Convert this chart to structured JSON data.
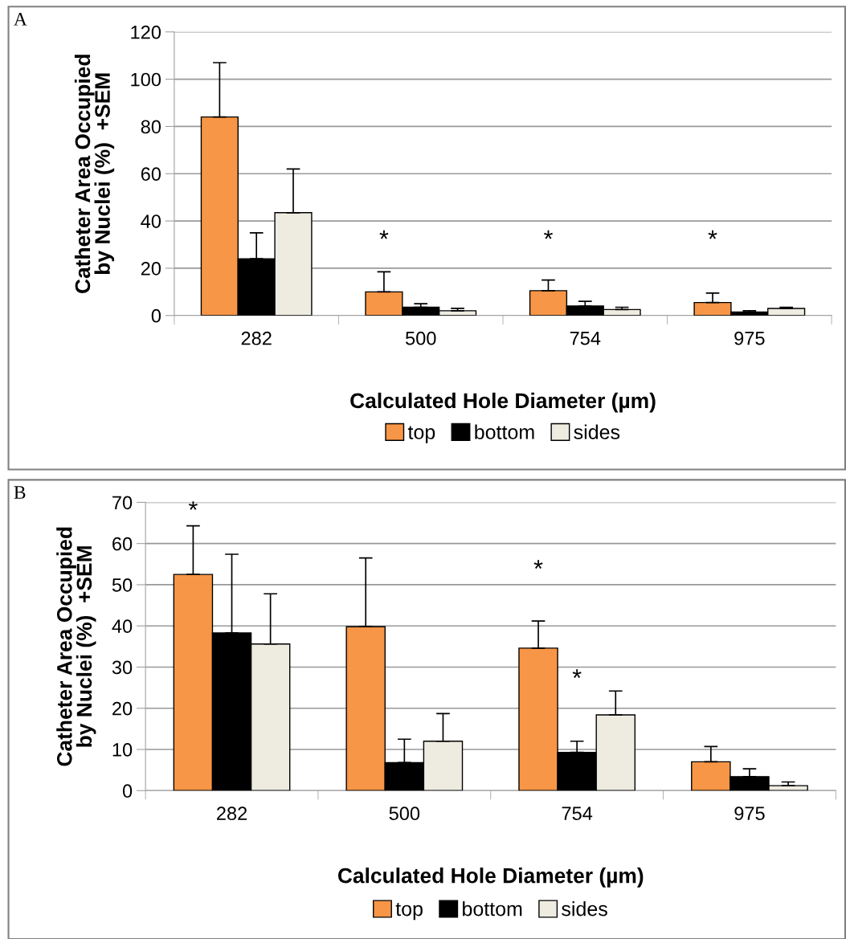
{
  "chart_data": [
    {
      "type": "bar",
      "title": "A",
      "xlabel": "Calculated Hole Diameter (µm)",
      "ylabel": "Catheter Area Occupied\nby Nuclei (%)  +SEM",
      "categories": [
        "282",
        "500",
        "754",
        "975"
      ],
      "ylim": [
        0,
        120
      ],
      "yticks": [
        0,
        20,
        40,
        60,
        80,
        100,
        120
      ],
      "grid": "y",
      "legend": "bottom",
      "series": [
        {
          "name": "top",
          "color": "#f79646",
          "values": [
            84,
            10,
            10.5,
            5.5
          ],
          "errors": [
            [
              84,
              107
            ],
            [
              10,
              18.5
            ],
            [
              10.5,
              15
            ],
            [
              5.5,
              9.5
            ]
          ]
        },
        {
          "name": "bottom",
          "color": "#000000",
          "values": [
            24,
            3.5,
            4,
            1.5
          ],
          "errors": [
            [
              24,
              35
            ],
            [
              3.5,
              5
            ],
            [
              4,
              6
            ],
            [
              1.5,
              2
            ]
          ]
        },
        {
          "name": "sides",
          "color": "#eeece1",
          "values": [
            43.5,
            2,
            2.5,
            3
          ],
          "errors": [
            [
              43.5,
              62
            ],
            [
              2,
              3
            ],
            [
              2.5,
              3.5
            ],
            [
              3,
              3.5
            ]
          ]
        }
      ],
      "annotations": [
        "*",
        "*",
        "*"
      ]
    },
    {
      "type": "bar",
      "title": "B",
      "xlabel": "Calculated Hole Diameter (µm)",
      "ylabel": "Catheter Area Occupied\nby Nuclei (%)  +SEM",
      "categories": [
        "282",
        "500",
        "754",
        "975"
      ],
      "ylim": [
        0,
        70
      ],
      "yticks": [
        0,
        10,
        20,
        30,
        40,
        50,
        60,
        70
      ],
      "grid": "y",
      "legend": "bottom",
      "series": [
        {
          "name": "top",
          "color": "#f79646",
          "values": [
            52.5,
            39.8,
            34.6,
            7
          ],
          "errors": [
            [
              52.5,
              64.3
            ],
            [
              39.8,
              56.5
            ],
            [
              34.6,
              41.2
            ],
            [
              7,
              10.7
            ]
          ]
        },
        {
          "name": "bottom",
          "color": "#000000",
          "values": [
            38.3,
            6.8,
            9.3,
            3.4
          ],
          "errors": [
            [
              38.3,
              57.4
            ],
            [
              6.8,
              12.5
            ],
            [
              9.3,
              12
            ],
            [
              3.4,
              5.3
            ]
          ]
        },
        {
          "name": "sides",
          "color": "#eeece1",
          "values": [
            35.6,
            12,
            18.4,
            1.2
          ],
          "errors": [
            [
              35.6,
              47.8
            ],
            [
              12,
              18.7
            ],
            [
              18.4,
              24.2
            ],
            [
              1.2,
              2.1
            ]
          ]
        }
      ],
      "annotations": [
        "*",
        "*",
        "*"
      ]
    }
  ]
}
